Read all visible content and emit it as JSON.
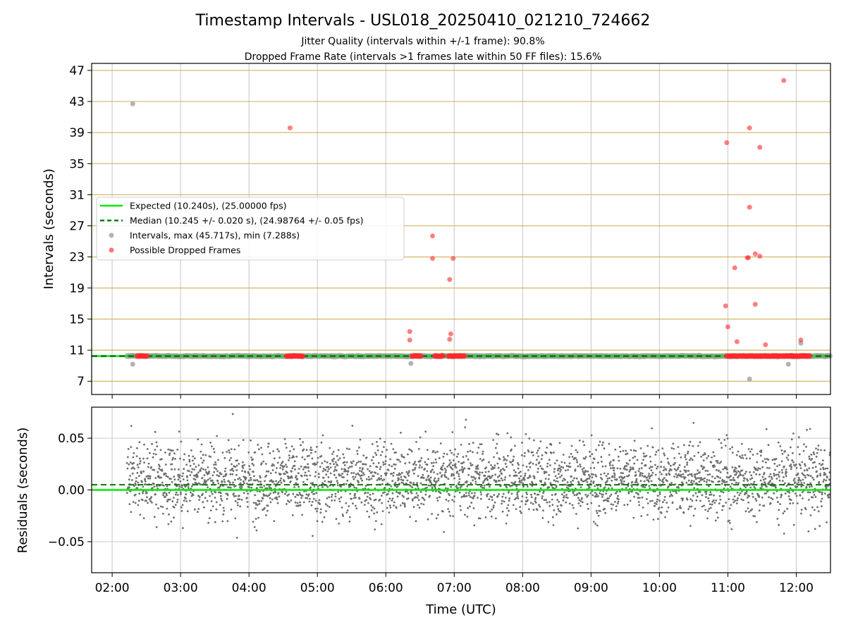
{
  "title": "Timestamp Intervals - USL018_20250410_021210_724662",
  "subtitle_1": "Jitter Quality (intervals within +/-1 frame): 90.8%",
  "subtitle_2": "Dropped Frame Rate (intervals >1 frames late within 50 FF files): 15.6%",
  "colors": {
    "expected": "#00ee00",
    "median": "#007a00",
    "intervals": "#999999",
    "dropped": "#ff2a2a",
    "residuals": "#6e6e6e",
    "hgrid": "#d2b466",
    "vgrid": "#cfcfcf"
  },
  "chart_data": [
    {
      "type": "scatter",
      "ylabel": "Intervals (seconds)",
      "xlim": [
        "01:42",
        "12:30"
      ],
      "ylim": [
        5.3,
        47.9
      ],
      "yticks": [
        7,
        11,
        15,
        19,
        23,
        27,
        31,
        35,
        39,
        43,
        47
      ],
      "grid": true,
      "legend_position": "center-left",
      "expected_value": 10.24,
      "median_value": 10.245,
      "legend": [
        "Expected (10.240s), (25.00000 fps)",
        "Median (10.245 +/- 0.020 s), (24.98764 +/- 0.05 fps)",
        "Intervals, max (45.717s), min (7.288s)",
        "Possible Dropped Frames"
      ],
      "intervals_series": {
        "name": "Intervals, max (45.717s), min (7.288s)",
        "x_range": [
          "02:13",
          "12:30"
        ],
        "typical_value": 10.24,
        "outliers": [
          {
            "x": "02:18",
            "y": 42.7
          },
          {
            "x": "02:18",
            "y": 9.2
          },
          {
            "x": "06:22",
            "y": 9.3
          },
          {
            "x": "09:13",
            "y": 10.3
          },
          {
            "x": "11:19",
            "y": 7.29
          },
          {
            "x": "11:53",
            "y": 9.2
          },
          {
            "x": "12:04",
            "y": 11.9
          }
        ]
      },
      "dropped_series": {
        "name": "Possible Dropped Frames",
        "points": [
          {
            "x": "04:36",
            "y": 39.6
          },
          {
            "x": "06:21",
            "y": 13.4
          },
          {
            "x": "06:21",
            "y": 12.3
          },
          {
            "x": "06:41",
            "y": 25.7
          },
          {
            "x": "06:41",
            "y": 22.8
          },
          {
            "x": "06:56",
            "y": 20.1
          },
          {
            "x": "06:57",
            "y": 13.1
          },
          {
            "x": "06:56",
            "y": 12.4
          },
          {
            "x": "06:59",
            "y": 22.8
          },
          {
            "x": "10:59",
            "y": 37.7
          },
          {
            "x": "10:58",
            "y": 16.7
          },
          {
            "x": "11:00",
            "y": 14.0
          },
          {
            "x": "11:06",
            "y": 21.6
          },
          {
            "x": "11:08",
            "y": 12.1
          },
          {
            "x": "11:17",
            "y": 22.9
          },
          {
            "x": "11:18",
            "y": 22.9
          },
          {
            "x": "11:19",
            "y": 29.4
          },
          {
            "x": "11:19",
            "y": 39.6
          },
          {
            "x": "11:24",
            "y": 23.4
          },
          {
            "x": "11:24",
            "y": 16.9
          },
          {
            "x": "11:28",
            "y": 37.1
          },
          {
            "x": "11:28",
            "y": 23.1
          },
          {
            "x": "11:33",
            "y": 11.7
          },
          {
            "x": "11:49",
            "y": 45.7
          },
          {
            "x": "12:04",
            "y": 12.3
          }
        ],
        "clusters_at_median": [
          [
            "02:22",
            "02:31"
          ],
          [
            "04:33",
            "04:47"
          ],
          [
            "06:23",
            "06:31"
          ],
          [
            "06:43",
            "06:50"
          ],
          [
            "06:55",
            "07:09"
          ],
          [
            "10:59",
            "11:58"
          ],
          [
            "11:55",
            "12:12"
          ]
        ]
      }
    },
    {
      "type": "scatter",
      "xlabel": "Time (UTC)",
      "ylabel": "Residuals (seconds)",
      "xlim": [
        "01:42",
        "12:30"
      ],
      "ylim": [
        -0.08,
        0.08
      ],
      "yticks": [
        -0.05,
        0.0,
        0.05
      ],
      "ytick_labels": [
        "−0.05",
        "0.00",
        "0.05"
      ],
      "xticks": [
        "02:00",
        "03:00",
        "04:00",
        "05:00",
        "06:00",
        "07:00",
        "08:00",
        "09:00",
        "10:00",
        "11:00",
        "12:00"
      ],
      "grid": true,
      "expected_residual": 0.0,
      "median_residual": 0.005,
      "series": {
        "name": "Residuals",
        "x_range": [
          "02:13",
          "12:30"
        ],
        "spread": "approximately -0.065 to 0.08, concentrated around 0.00 to 0.03"
      }
    }
  ]
}
